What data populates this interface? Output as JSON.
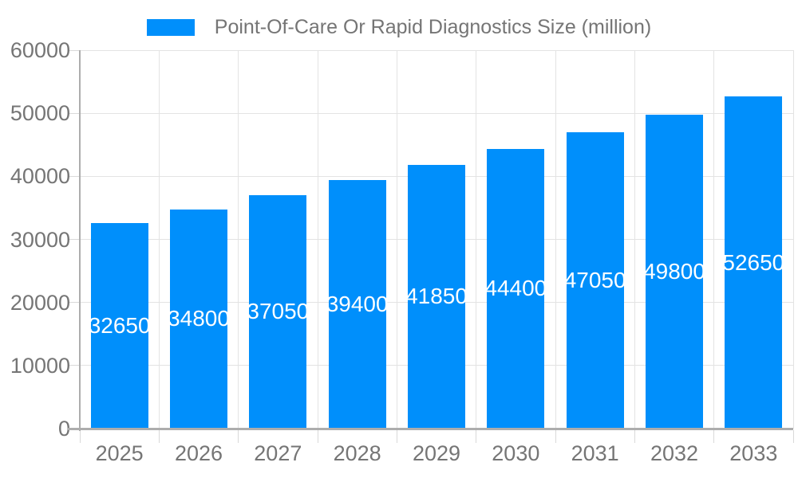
{
  "legend": {
    "label": "Point-Of-Care Or Rapid Diagnostics Size (million)"
  },
  "chart_data": {
    "type": "bar",
    "title": "Point-Of-Care Or Rapid Diagnostics Size (million)",
    "categories": [
      "2025",
      "2026",
      "2027",
      "2028",
      "2029",
      "2030",
      "2031",
      "2032",
      "2033"
    ],
    "values": [
      32650,
      34800,
      37050,
      39400,
      41850,
      44400,
      47050,
      49800,
      52650
    ],
    "series": [
      {
        "name": "Point-Of-Care Or Rapid Diagnostics Size (million)",
        "values": [
          32650,
          34800,
          37050,
          39400,
          41850,
          44400,
          47050,
          49800,
          52650
        ]
      }
    ],
    "xlabel": "",
    "ylabel": "",
    "ylim": [
      0,
      60000
    ],
    "ytick_step": 10000,
    "ytick_labels": [
      "0",
      "10000",
      "20000",
      "30000",
      "40000",
      "50000",
      "60000"
    ],
    "grid": "on",
    "legend_position": "top",
    "data_labels": "inside-center",
    "colors": {
      "bar": "#008FFB",
      "bar_label_text": "#FFFFFF",
      "axis_text": "#757575",
      "gridline": "#E3E3E3",
      "axis_line": "#ADADAD",
      "tick_mark": "#D9D9D9",
      "background": "#FFFFFF"
    }
  }
}
